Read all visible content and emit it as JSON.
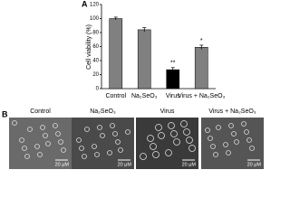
{
  "panel_a": {
    "label": "A"
  },
  "chart_data": {
    "type": "bar",
    "y_label": "Cell viability (%)",
    "categories": [
      "Control",
      "Na₂SeO₃",
      "Virus",
      "Virus + Na₂SeO₃"
    ],
    "values": [
      100,
      84,
      27,
      59
    ],
    "errors": [
      2,
      3,
      3,
      3
    ],
    "colors": [
      "#808080",
      "#808080",
      "#000000",
      "#808080"
    ],
    "significance": [
      null,
      null,
      "**",
      "*"
    ],
    "ylim": [
      0,
      120
    ],
    "yticks": [
      0,
      20,
      40,
      60,
      80,
      100,
      120
    ]
  },
  "panel_b": {
    "label": "B",
    "images": [
      {
        "label": "Control",
        "scale_bar": "20 μM"
      },
      {
        "label": "Na₂SeO₃",
        "scale_bar": "20 μM"
      },
      {
        "label": "Virus",
        "scale_bar": "20 μM"
      },
      {
        "label": "Virus + Na₂SeO₃",
        "scale_bar": "20 μM"
      }
    ]
  }
}
